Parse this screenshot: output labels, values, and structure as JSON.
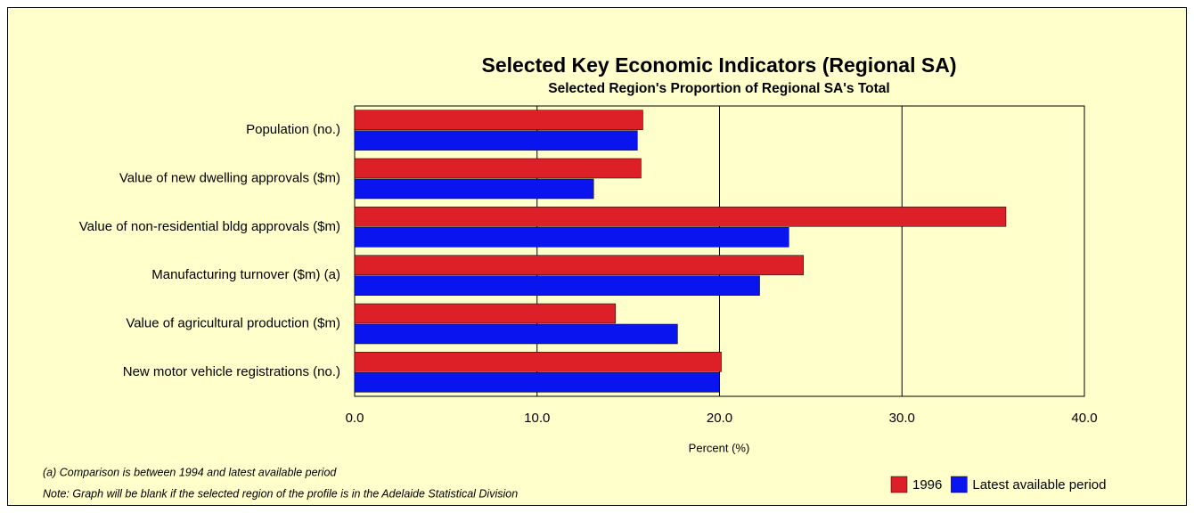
{
  "chart_data": {
    "type": "bar",
    "orientation": "horizontal",
    "title": "Selected Key Economic Indicators (Regional SA)",
    "subtitle": "Selected Region's Proportion of Regional SA's Total",
    "x_label": "Percent (%)",
    "categories": [
      "Population (no.)",
      "Value of new dwelling approvals ($m)",
      "Value of non-residential bldg approvals ($m)",
      "Manufacturing turnover ($m) (a)",
      "Value of agricultural production ($m)",
      "New motor vehicle registrations (no.)"
    ],
    "series": [
      {
        "name": "1996",
        "color": "#dd2027",
        "values": [
          15.8,
          15.7,
          35.7,
          24.6,
          14.3,
          20.1
        ]
      },
      {
        "name": "Latest available period",
        "color": "#0a14ee",
        "values": [
          15.5,
          13.1,
          23.8,
          22.2,
          17.7,
          20.0
        ]
      }
    ],
    "xlim": [
      0,
      40
    ],
    "xticks": [
      {
        "value": 0,
        "label": "0.0"
      },
      {
        "value": 10,
        "label": "10.0"
      },
      {
        "value": 20,
        "label": "20.0"
      },
      {
        "value": 30,
        "label": "30.0"
      },
      {
        "value": 40,
        "label": "40.0"
      }
    ],
    "grid": true,
    "legend": "bottom-right",
    "annotations": [
      "(a) Comparison is between 1994 and latest available period",
      "Note: Graph will be blank if the selected region of the profile is in the Adelaide Statistical Division"
    ]
  }
}
